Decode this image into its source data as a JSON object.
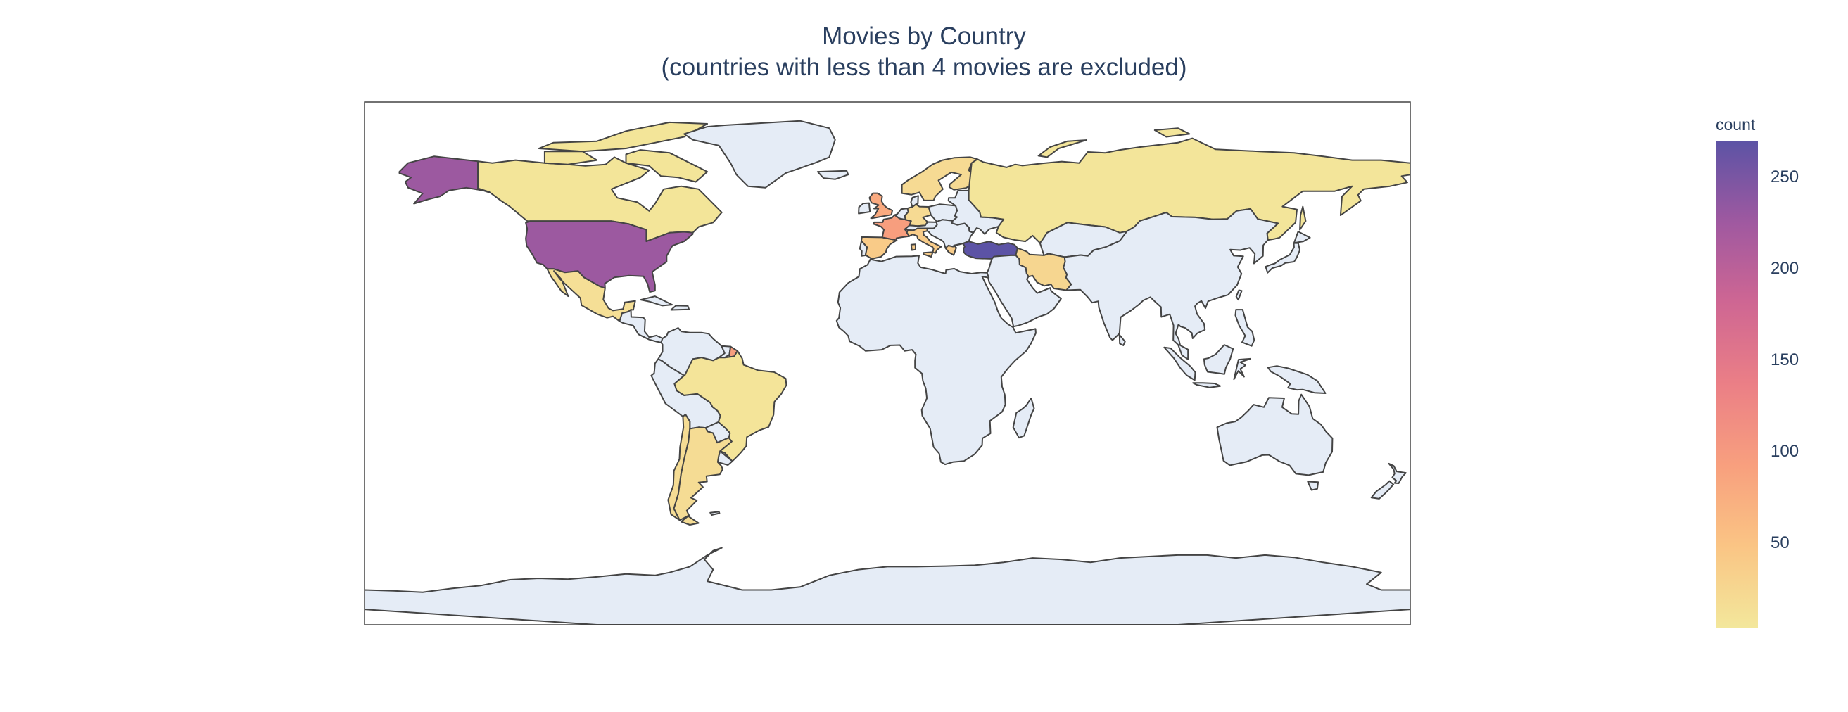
{
  "title": {
    "line1": "Movies by Country",
    "line2": "(countries with less than 4 movies are excluded)"
  },
  "colorbar": {
    "title": "count",
    "ticks": [
      "250",
      "200",
      "150",
      "100",
      "50"
    ],
    "tick_values": [
      250,
      200,
      150,
      100,
      50
    ],
    "range": [
      4,
      270
    ],
    "colors": [
      "#f3e79b",
      "#fac484",
      "#f8a07e",
      "#eb7f86",
      "#ce6693",
      "#a059a0",
      "#5c53a5"
    ]
  },
  "colors": {
    "no_data": "#e5ecf6",
    "border": "#444444",
    "ocean": "#ffffff",
    "frame": "#444444"
  },
  "map": {
    "projection": "equirectangular",
    "extent": {
      "lon": [
        -180,
        180
      ],
      "lat": [
        -90,
        90
      ]
    },
    "countries": {
      "Turkey": 270,
      "United States": 228,
      "France": 95,
      "United Kingdom": 80,
      "Spain": 40,
      "Italy": 38,
      "Iran": 25,
      "Germany": 20,
      "Argentina": 18,
      "Mexico": 14,
      "Brazil": 8,
      "Canada": 7,
      "Russia": 6,
      "French Guiana": 95
    }
  }
}
